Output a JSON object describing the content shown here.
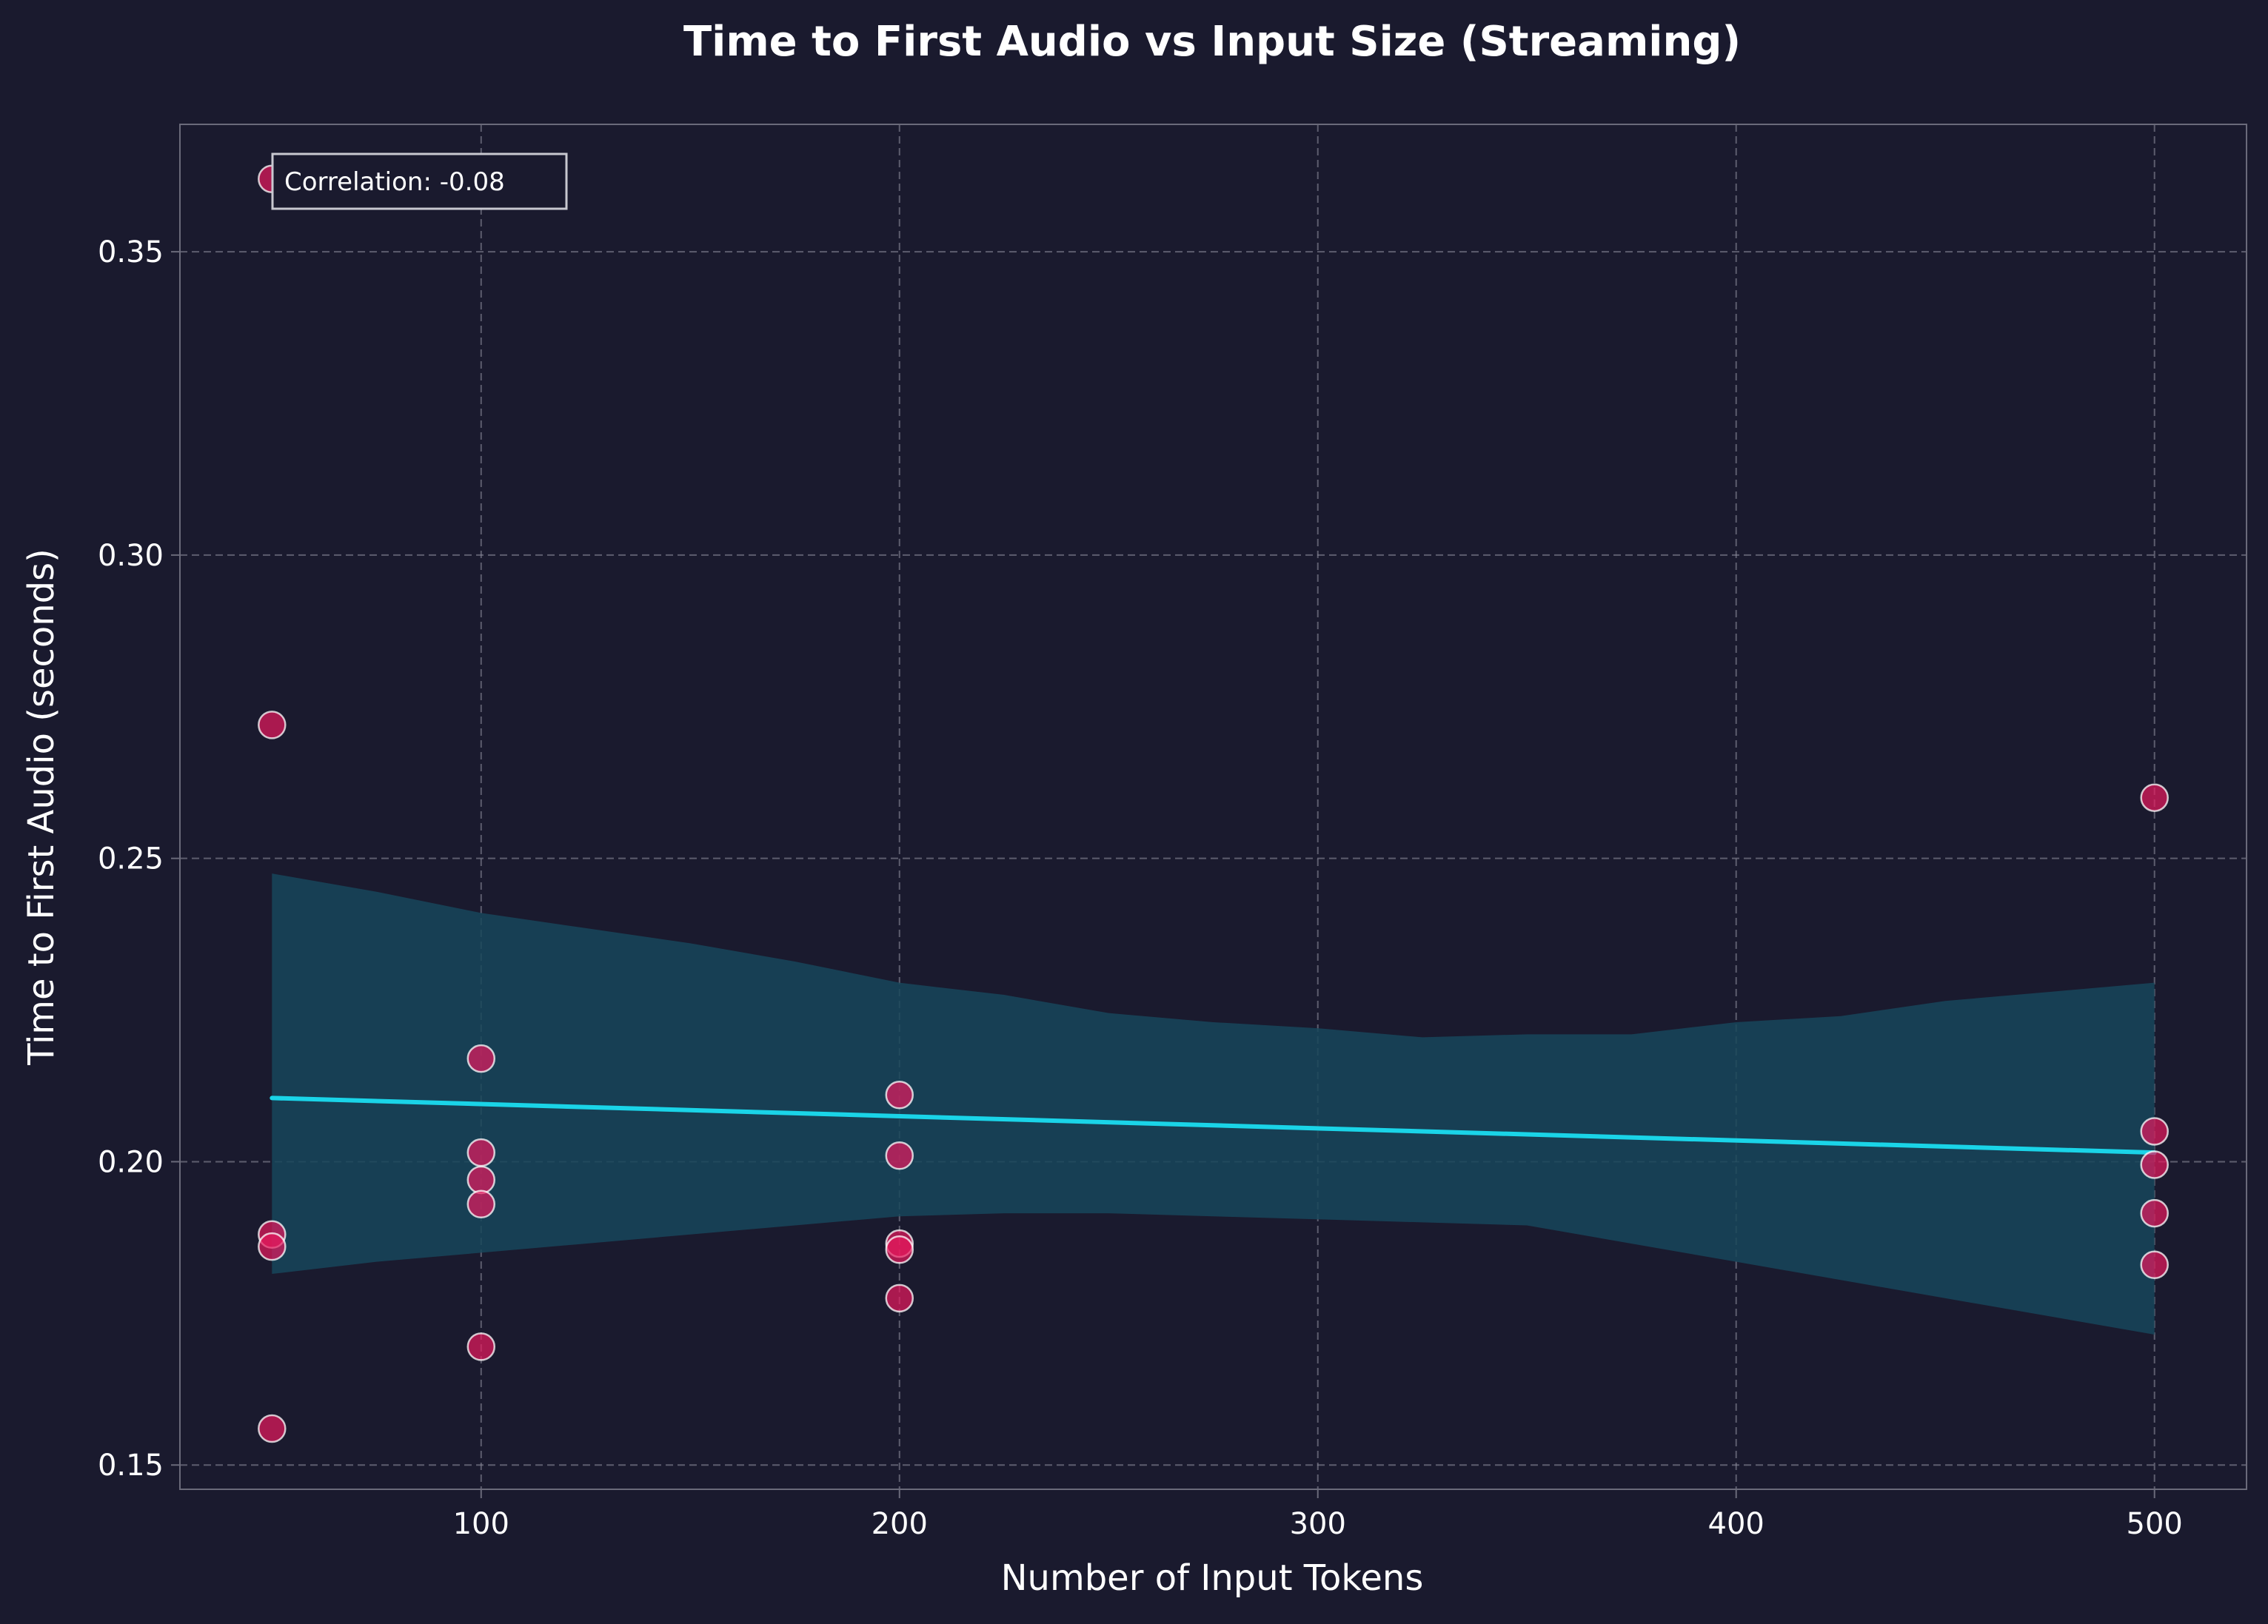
{
  "colors": {
    "background": "#1a1a2e",
    "points": "#e8195e",
    "point_edge": "#ffffff",
    "trend_line": "#1ad4e8",
    "confidence_band": "#17475a",
    "grid": "#8a8a9a",
    "axes": "#6a6a7a",
    "text": "#ffffff"
  },
  "chart_data": {
    "type": "scatter",
    "title": "Time to First Audio vs Input Size (Streaming)",
    "xlabel": "Number of Input Tokens",
    "ylabel": "Time to First Audio (seconds)",
    "xlim": [
      28,
      522
    ],
    "ylim": [
      0.146,
      0.371
    ],
    "xticks": [
      100,
      200,
      300,
      400,
      500
    ],
    "yticks": [
      0.15,
      0.2,
      0.25,
      0.3,
      0.35
    ],
    "xtick_labels": [
      "100",
      "200",
      "300",
      "400",
      "500"
    ],
    "ytick_labels": [
      "0.15",
      "0.20",
      "0.25",
      "0.30",
      "0.35"
    ],
    "grid": true,
    "points": [
      {
        "x": 50,
        "y": 0.362
      },
      {
        "x": 50,
        "y": 0.272
      },
      {
        "x": 50,
        "y": 0.188
      },
      {
        "x": 50,
        "y": 0.186
      },
      {
        "x": 50,
        "y": 0.156
      },
      {
        "x": 100,
        "y": 0.217
      },
      {
        "x": 100,
        "y": 0.2015
      },
      {
        "x": 100,
        "y": 0.197
      },
      {
        "x": 100,
        "y": 0.193
      },
      {
        "x": 100,
        "y": 0.1695
      },
      {
        "x": 200,
        "y": 0.211
      },
      {
        "x": 200,
        "y": 0.201
      },
      {
        "x": 200,
        "y": 0.1865
      },
      {
        "x": 200,
        "y": 0.1855
      },
      {
        "x": 200,
        "y": 0.1775
      },
      {
        "x": 500,
        "y": 0.26
      },
      {
        "x": 500,
        "y": 0.205
      },
      {
        "x": 500,
        "y": 0.1995
      },
      {
        "x": 500,
        "y": 0.1915
      },
      {
        "x": 500,
        "y": 0.183
      }
    ],
    "regression": {
      "x": [
        50,
        500
      ],
      "y": [
        0.2105,
        0.2015
      ]
    },
    "confidence_band": {
      "x": [
        50,
        75,
        100,
        125,
        150,
        175,
        200,
        225,
        250,
        275,
        300,
        325,
        350,
        375,
        400,
        425,
        450,
        475,
        500
      ],
      "upper": [
        0.2475,
        0.2445,
        0.241,
        0.2385,
        0.236,
        0.233,
        0.2295,
        0.2275,
        0.2245,
        0.223,
        0.222,
        0.2205,
        0.221,
        0.221,
        0.223,
        0.224,
        0.2265,
        0.228,
        0.2295
      ],
      "lower": [
        0.1815,
        0.1835,
        0.185,
        0.1865,
        0.188,
        0.1895,
        0.191,
        0.1915,
        0.1915,
        0.191,
        0.1905,
        0.19,
        0.1895,
        0.1865,
        0.1835,
        0.1805,
        0.1775,
        0.1745,
        0.1715
      ]
    },
    "annotation": "Correlation: -0.08"
  }
}
